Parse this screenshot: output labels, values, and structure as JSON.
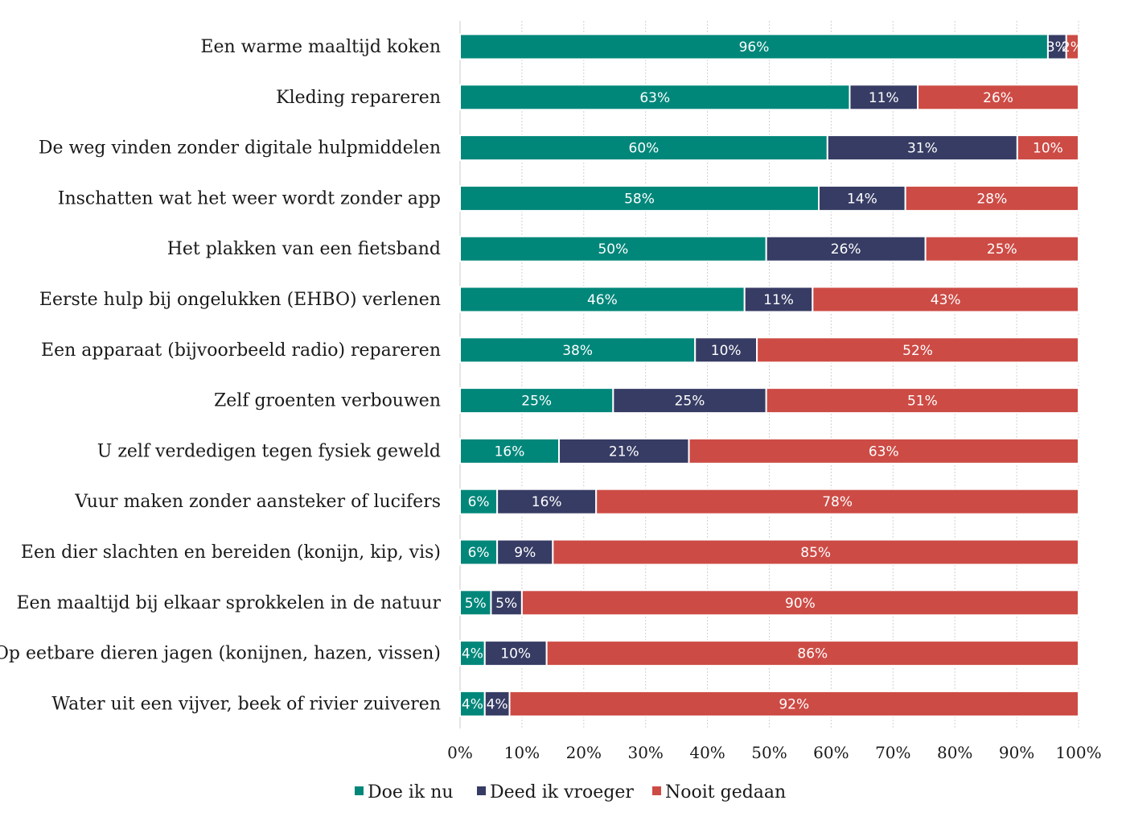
{
  "chart_data": {
    "type": "bar",
    "orientation": "horizontal",
    "stacked": true,
    "percent": true,
    "categories": [
      "Een warme maaltijd koken",
      "Kleding repareren",
      "De weg vinden zonder digitale hulpmiddelen",
      "Inschatten wat het weer wordt zonder app",
      "Het plakken van een fietsband",
      "Eerste hulp bij ongelukken (EHBO) verlenen",
      "Een apparaat (bijvoorbeeld radio) repareren",
      "Zelf groenten verbouwen",
      "U zelf verdedigen tegen fysiek geweld",
      "Vuur maken zonder aansteker of lucifers",
      "Een dier slachten en bereiden (konijn, kip, vis)",
      "Een maaltijd bij elkaar sprokkelen in de natuur",
      "Op eetbare dieren jagen (konijnen, hazen, vissen)",
      "Water uit een vijver, beek of rivier zuiveren"
    ],
    "series": [
      {
        "name": "Doe ik nu",
        "color": "#00877a",
        "values": [
          96,
          63,
          60,
          58,
          50,
          46,
          38,
          25,
          16,
          6,
          6,
          5,
          4,
          4
        ]
      },
      {
        "name": "Deed ik vroeger",
        "color": "#373c64",
        "values": [
          3,
          11,
          31,
          14,
          26,
          11,
          10,
          25,
          21,
          16,
          9,
          5,
          10,
          4
        ]
      },
      {
        "name": "Nooit gedaan",
        "color": "#cd4b45",
        "values": [
          2,
          26,
          10,
          28,
          25,
          43,
          52,
          51,
          63,
          78,
          85,
          90,
          86,
          92
        ]
      }
    ],
    "xlim": [
      0,
      100
    ],
    "xticks": [
      "0%",
      "10%",
      "20%",
      "30%",
      "40%",
      "50%",
      "60%",
      "70%",
      "80%",
      "90%",
      "100%"
    ],
    "grid": true,
    "legend": "bottom"
  }
}
